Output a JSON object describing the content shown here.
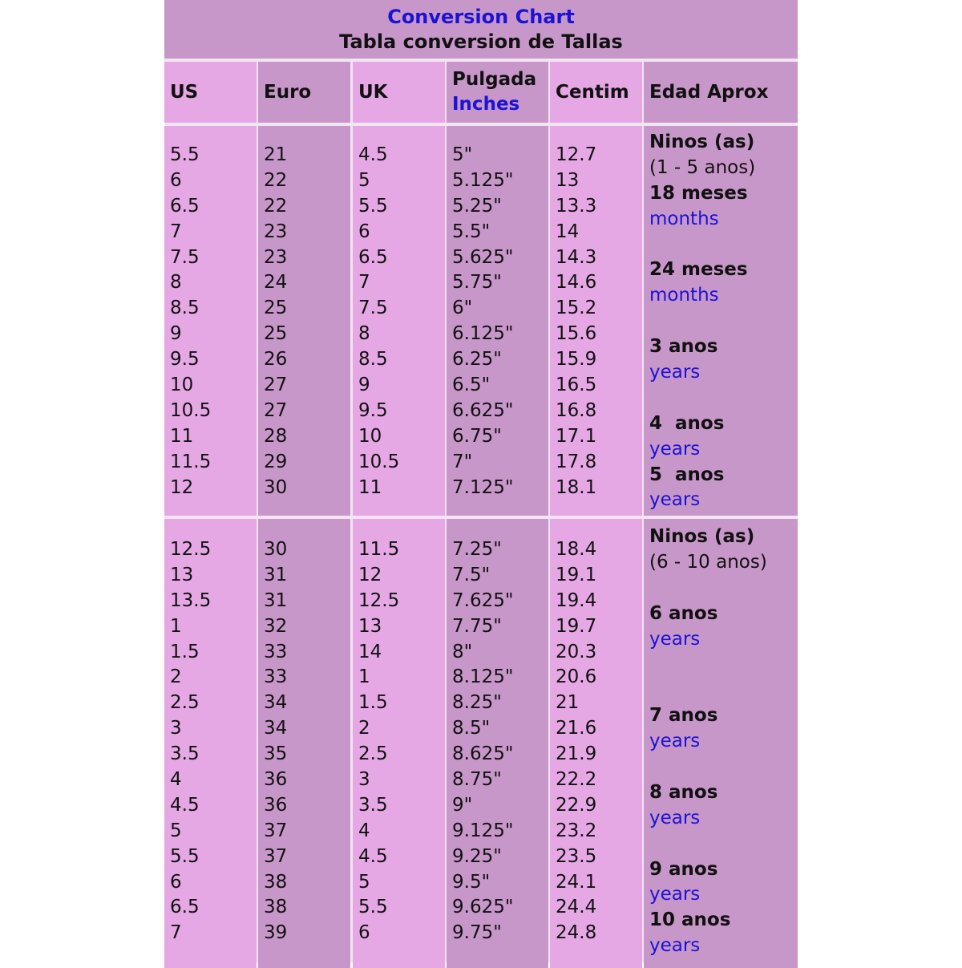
{
  "title": {
    "line1": "Conversion Chart",
    "line2": "Tabla conversion de Tallas"
  },
  "colors": {
    "light": "#e6a8e4",
    "dark": "#c897c9",
    "blue": "#1c12d4"
  },
  "headers": [
    {
      "text": "US"
    },
    {
      "text": "Euro"
    },
    {
      "text": "UK"
    },
    {
      "text": "Pulgada",
      "sub": "Inches"
    },
    {
      "text": "Centim"
    },
    {
      "text": "Edad Aprox"
    }
  ],
  "sections": [
    {
      "columns": [
        [
          "5.5",
          "6",
          "6.5",
          "7",
          "7.5",
          "8",
          "8.5",
          "9",
          "9.5",
          "10",
          "10.5",
          "11",
          "11.5",
          "12"
        ],
        [
          "21",
          "22",
          "22",
          "23",
          "23",
          "24",
          "25",
          "25",
          "26",
          "27",
          "27",
          "28",
          "29",
          "30"
        ],
        [
          "4.5",
          "5",
          "5.5",
          "6",
          "6.5",
          "7",
          "7.5",
          "8",
          "8.5",
          "9",
          "9.5",
          "10",
          "10.5",
          "11"
        ],
        [
          "5\"",
          "5.125\"",
          "5.25\"",
          "5.5\"",
          "5.625\"",
          "5.75\"",
          "6\"",
          "6.125\"",
          "6.25\"",
          "6.5\"",
          "6.625\"",
          "6.75\"",
          "7\"",
          "7.125\""
        ],
        [
          "12.7",
          "13",
          "13.3",
          "14",
          "14.3",
          "14.6",
          "15.2",
          "15.6",
          "15.9",
          "16.5",
          "16.8",
          "17.1",
          "17.8",
          "18.1"
        ]
      ],
      "age": [
        {
          "text": "Ninos (as)",
          "style": "bold"
        },
        {
          "text": "(1 - 5 anos)",
          "style": "normal"
        },
        {
          "text": "18 meses",
          "style": "bold"
        },
        {
          "text": "months",
          "style": "blue"
        },
        {
          "text": "",
          "style": "normal"
        },
        {
          "text": "24 meses",
          "style": "bold"
        },
        {
          "text": "months",
          "style": "blue"
        },
        {
          "text": "",
          "style": "normal"
        },
        {
          "text": "3 anos",
          "style": "bold"
        },
        {
          "text": "years",
          "style": "blue"
        },
        {
          "text": "",
          "style": "normal"
        },
        {
          "text": "4  anos",
          "style": "bold"
        },
        {
          "text": "years",
          "style": "blue"
        },
        {
          "text": "5  anos",
          "style": "bold"
        },
        {
          "text": "years",
          "style": "blue"
        }
      ]
    },
    {
      "columns": [
        [
          "12.5",
          "13",
          "13.5",
          "1",
          "1.5",
          "2",
          "2.5",
          "3",
          "3.5",
          "4",
          "4.5",
          "5",
          "5.5",
          "6",
          "6.5",
          "7"
        ],
        [
          "30",
          "31",
          "31",
          "32",
          "33",
          "33",
          "34",
          "34",
          "35",
          "36",
          "36",
          "37",
          "37",
          "38",
          "38",
          "39"
        ],
        [
          "11.5",
          "12",
          "12.5",
          "13",
          "14",
          "1",
          "1.5",
          "2",
          "2.5",
          "3",
          "3.5",
          "4",
          "4.5",
          "5",
          "5.5",
          "6"
        ],
        [
          "7.25\"",
          "7.5\"",
          "7.625\"",
          "7.75\"",
          "8\"",
          "8.125\"",
          "8.25\"",
          "8.5\"",
          "8.625\"",
          "8.75\"",
          "9\"",
          "9.125\"",
          "9.25\"",
          "9.5\"",
          "9.625\"",
          "9.75\""
        ],
        [
          "18.4",
          "19.1",
          "19.4",
          "19.7",
          "20.3",
          "20.6",
          "21",
          "21.6",
          "21.9",
          "22.2",
          "22.9",
          "23.2",
          "23.5",
          "24.1",
          "24.4",
          "24.8"
        ]
      ],
      "age": [
        {
          "text": "Ninos (as)",
          "style": "bold"
        },
        {
          "text": "(6 - 10 anos)",
          "style": "normal"
        },
        {
          "text": "",
          "style": "normal"
        },
        {
          "text": "6 anos",
          "style": "bold"
        },
        {
          "text": "years",
          "style": "blue"
        },
        {
          "text": "",
          "style": "normal"
        },
        {
          "text": "",
          "style": "normal"
        },
        {
          "text": "7 anos",
          "style": "bold"
        },
        {
          "text": "years",
          "style": "blue"
        },
        {
          "text": "",
          "style": "normal"
        },
        {
          "text": "8 anos",
          "style": "bold"
        },
        {
          "text": "years",
          "style": "blue"
        },
        {
          "text": "",
          "style": "normal"
        },
        {
          "text": "9 anos",
          "style": "bold"
        },
        {
          "text": "years",
          "style": "blue"
        },
        {
          "text": "10 anos",
          "style": "bold"
        },
        {
          "text": "years",
          "style": "blue"
        }
      ]
    }
  ]
}
